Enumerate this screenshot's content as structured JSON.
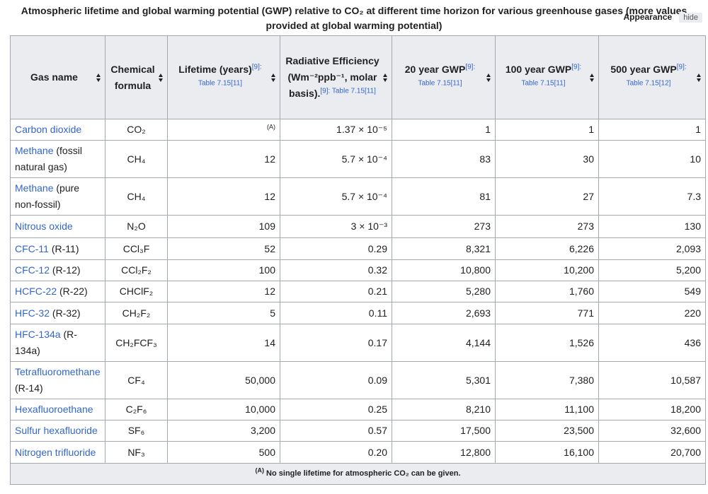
{
  "caption": "Atmospheric lifetime and global warming potential (GWP) relative to CO₂ at different time horizon for various greenhouse gases (more values provided at global warming potential)",
  "appearance": "Appearance",
  "hide": "hide",
  "table": {
    "headers": [
      {
        "text": "Gas name"
      },
      {
        "text": "Chemical formula"
      },
      {
        "text": "Lifetime (years)",
        "ref": "[9]: Table 7.15[11]"
      },
      {
        "text": "Radiative Efficiency (Wm⁻²ppb⁻¹, molar basis).",
        "ref": "[9]: Table 7.15[11]"
      },
      {
        "text": "20 year GWP",
        "ref": "[9]: Table 7.15[11]"
      },
      {
        "text": "100 year GWP",
        "ref": "[9]: Table 7.15[11]"
      },
      {
        "text": "500 year GWP",
        "ref": "[9]: Table 7.15[12]"
      }
    ],
    "rows": [
      [
        "Carbon dioxide",
        "",
        "CO₂",
        "(A)",
        "1.37 × 10⁻⁵",
        "1",
        "1",
        "1"
      ],
      [
        "Methane",
        " (fossil natural gas)",
        "CH₄",
        "12",
        "5.7 × 10⁻⁴",
        "83",
        "30",
        "10"
      ],
      [
        "Methane",
        " (pure non-fossil)",
        "CH₄",
        "12",
        "5.7 × 10⁻⁴",
        "81",
        "27",
        "7.3"
      ],
      [
        "Nitrous oxide",
        "",
        "N₂O",
        "109",
        "3 × 10⁻³",
        "273",
        "273",
        "130"
      ],
      [
        "CFC-11",
        " (R-11)",
        "CCl₃F",
        "52",
        "0.29",
        "8,321",
        "6,226",
        "2,093"
      ],
      [
        "CFC-12",
        " (R-12)",
        "CCl₂F₂",
        "100",
        "0.32",
        "10,800",
        "10,200",
        "5,200"
      ],
      [
        "HCFC-22",
        " (R-22)",
        "CHClF₂",
        "12",
        "0.21",
        "5,280",
        "1,760",
        "549"
      ],
      [
        "HFC-32",
        " (R-32)",
        "CH₂F₂",
        "5",
        "0.11",
        "2,693",
        "771",
        "220"
      ],
      [
        "HFC-134a",
        " (R-134a)",
        "CH₂FCF₃",
        "14",
        "0.17",
        "4,144",
        "1,526",
        "436"
      ],
      [
        "Tetrafluoromethane",
        " (R-14)",
        "CF₄",
        "50,000",
        "0.09",
        "5,301",
        "7,380",
        "10,587"
      ],
      [
        "Hexafluoroethane",
        "",
        "C₂F₆",
        "10,000",
        "0.25",
        "8,210",
        "11,100",
        "18,200"
      ],
      [
        "Sulfur hexafluoride",
        "",
        "SF₆",
        "3,200",
        "0.57",
        "17,500",
        "23,500",
        "32,600"
      ],
      [
        "Nitrogen trifluoride",
        "",
        "NF₃",
        "500",
        "0.20",
        "12,800",
        "16,100",
        "20,700"
      ]
    ],
    "footnote": {
      "mark": "(A)",
      "text": "No single lifetime for atmospheric CO₂ can be given."
    }
  }
}
